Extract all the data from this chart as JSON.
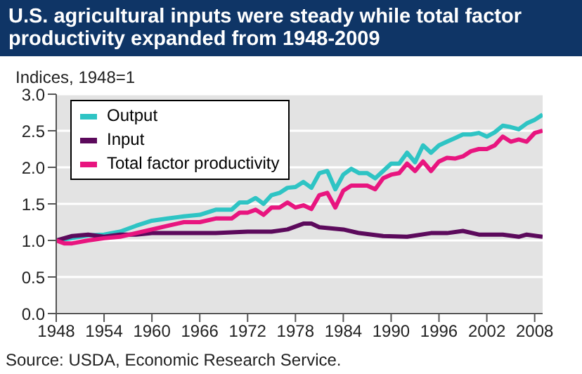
{
  "chart_data": {
    "type": "line",
    "title": "U.S. agricultural inputs were steady while total factor productivity expanded from 1948-2009",
    "ylabel": "Indices, 1948=1",
    "annotations": [
      "Source: USDA, Economic Research Service."
    ],
    "xlim": [
      1948,
      2009
    ],
    "xticks": [
      1948,
      1954,
      1960,
      1966,
      1972,
      1978,
      1984,
      1990,
      1996,
      2002,
      2008
    ],
    "ylim": [
      0,
      3
    ],
    "yticks": [
      {
        "value": 0,
        "label": "0.0"
      },
      {
        "value": 0.5,
        "label": "0.5"
      },
      {
        "value": 1,
        "label": "1.0"
      },
      {
        "value": 1.5,
        "label": "1.5"
      },
      {
        "value": 2,
        "label": "2.0"
      },
      {
        "value": 2.5,
        "label": "2.5"
      },
      {
        "value": 3,
        "label": "3.0"
      }
    ],
    "grid": "y",
    "legend": "top left",
    "series": [
      {
        "name": "Output",
        "color": "#2ec4c4",
        "x": [
          1948,
          1950,
          1952,
          1954,
          1956,
          1958,
          1960,
          1962,
          1964,
          1966,
          1968,
          1970,
          1971,
          1972,
          1973,
          1974,
          1975,
          1976,
          1977,
          1978,
          1979,
          1980,
          1981,
          1982,
          1983,
          1984,
          1985,
          1986,
          1987,
          1988,
          1989,
          1990,
          1991,
          1992,
          1993,
          1994,
          1995,
          1996,
          1997,
          1998,
          1999,
          2000,
          2001,
          2002,
          2003,
          2004,
          2005,
          2006,
          2007,
          2008,
          2009
        ],
        "values": [
          1.0,
          1.03,
          1.07,
          1.08,
          1.12,
          1.2,
          1.27,
          1.3,
          1.33,
          1.35,
          1.42,
          1.42,
          1.52,
          1.52,
          1.58,
          1.5,
          1.62,
          1.65,
          1.72,
          1.73,
          1.8,
          1.72,
          1.92,
          1.95,
          1.7,
          1.9,
          1.98,
          1.92,
          1.92,
          1.85,
          1.95,
          2.05,
          2.05,
          2.2,
          2.07,
          2.3,
          2.2,
          2.3,
          2.35,
          2.4,
          2.45,
          2.45,
          2.47,
          2.42,
          2.48,
          2.57,
          2.55,
          2.52,
          2.6,
          2.65,
          2.72
        ]
      },
      {
        "name": "Input",
        "color": "#5c0a5c",
        "x": [
          1948,
          1950,
          1952,
          1954,
          1956,
          1958,
          1960,
          1964,
          1968,
          1972,
          1975,
          1977,
          1979,
          1980,
          1981,
          1984,
          1986,
          1989,
          1992,
          1995,
          1997,
          1999,
          2001,
          2004,
          2006,
          2007,
          2009
        ],
        "values": [
          1.0,
          1.06,
          1.08,
          1.05,
          1.08,
          1.08,
          1.1,
          1.1,
          1.1,
          1.12,
          1.12,
          1.15,
          1.23,
          1.23,
          1.18,
          1.15,
          1.1,
          1.06,
          1.05,
          1.1,
          1.1,
          1.13,
          1.08,
          1.08,
          1.05,
          1.08,
          1.05
        ]
      },
      {
        "name": "Total factor productivity",
        "color": "#e8157f",
        "x": [
          1948,
          1949,
          1950,
          1952,
          1954,
          1956,
          1958,
          1960,
          1962,
          1964,
          1966,
          1968,
          1970,
          1971,
          1972,
          1973,
          1974,
          1975,
          1976,
          1977,
          1978,
          1979,
          1980,
          1981,
          1982,
          1983,
          1984,
          1985,
          1986,
          1987,
          1988,
          1989,
          1990,
          1991,
          1992,
          1993,
          1994,
          1995,
          1996,
          1997,
          1998,
          1999,
          2000,
          2001,
          2002,
          2003,
          2004,
          2005,
          2006,
          2007,
          2008,
          2009
        ],
        "values": [
          1.0,
          0.96,
          0.96,
          1.0,
          1.03,
          1.05,
          1.1,
          1.15,
          1.2,
          1.25,
          1.25,
          1.3,
          1.3,
          1.38,
          1.38,
          1.42,
          1.35,
          1.45,
          1.45,
          1.52,
          1.45,
          1.48,
          1.43,
          1.62,
          1.65,
          1.45,
          1.68,
          1.75,
          1.75,
          1.75,
          1.7,
          1.85,
          1.9,
          1.92,
          2.05,
          1.95,
          2.08,
          1.95,
          2.08,
          2.13,
          2.12,
          2.15,
          2.22,
          2.25,
          2.25,
          2.3,
          2.42,
          2.35,
          2.38,
          2.35,
          2.47,
          2.5
        ]
      }
    ]
  }
}
